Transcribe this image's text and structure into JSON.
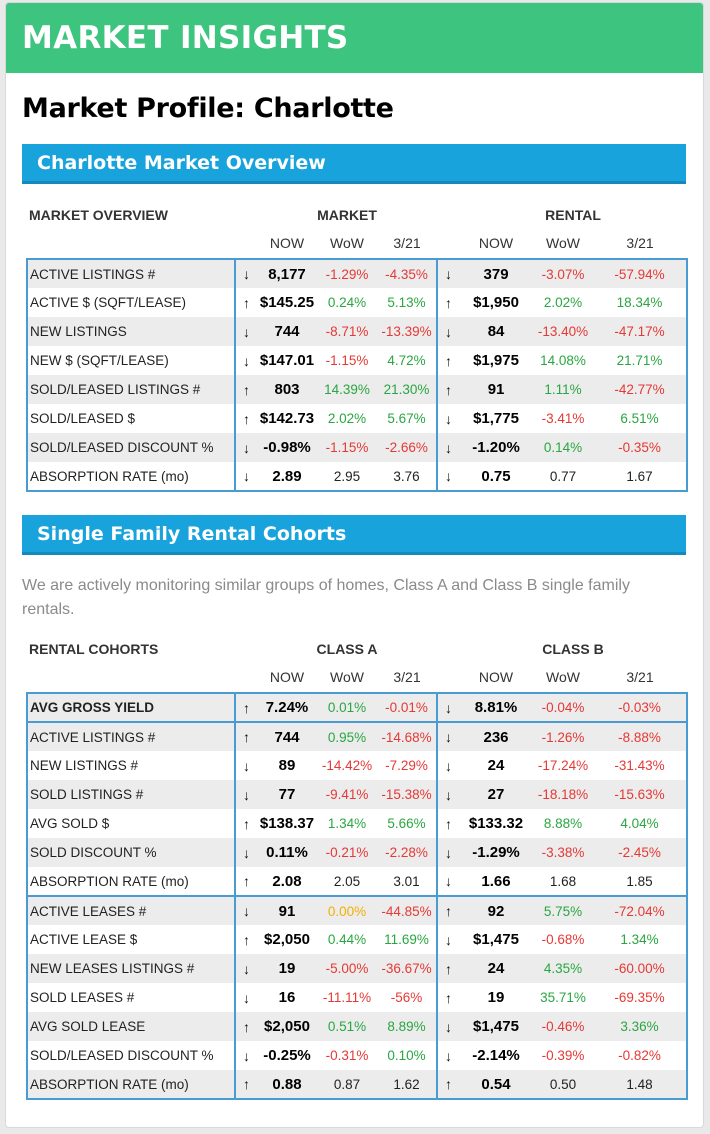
{
  "banner": {
    "title": "MARKET INSIGHTS"
  },
  "page_title": "Market Profile: Charlotte",
  "overview": {
    "header": "Charlotte Market Overview",
    "table_label": "MARKET OVERVIEW",
    "group1": "MARKET",
    "group2": "RENTAL",
    "cols": [
      "NOW",
      "WoW",
      "3/21"
    ],
    "rows": [
      {
        "label": "ACTIVE LISTINGS #",
        "a1": "↓",
        "m": [
          "8,177",
          "-1.29%",
          "-4.35%"
        ],
        "ms": [
          "now",
          "neg",
          "neg"
        ],
        "a2": "↓",
        "r": [
          "379",
          "-3.07%",
          "-57.94%"
        ],
        "rs": [
          "now",
          "neg",
          "neg"
        ]
      },
      {
        "label": "ACTIVE $ (SQFT/LEASE)",
        "a1": "↑",
        "m": [
          "$145.25",
          "0.24%",
          "5.13%"
        ],
        "ms": [
          "now",
          "pos",
          "pos"
        ],
        "a2": "↑",
        "r": [
          "$1,950",
          "2.02%",
          "18.34%"
        ],
        "rs": [
          "now",
          "pos",
          "pos"
        ]
      },
      {
        "label": "NEW LISTINGS",
        "a1": "↓",
        "m": [
          "744",
          "-8.71%",
          "-13.39%"
        ],
        "ms": [
          "now",
          "neg",
          "neg"
        ],
        "a2": "↓",
        "r": [
          "84",
          "-13.40%",
          "-47.17%"
        ],
        "rs": [
          "now",
          "neg",
          "neg"
        ]
      },
      {
        "label": "NEW $ (SQFT/LEASE)",
        "a1": "↓",
        "m": [
          "$147.01",
          "-1.15%",
          "4.72%"
        ],
        "ms": [
          "now",
          "neg",
          "pos"
        ],
        "a2": "↑",
        "r": [
          "$1,975",
          "14.08%",
          "21.71%"
        ],
        "rs": [
          "now",
          "pos",
          "pos"
        ]
      },
      {
        "label": "SOLD/LEASED LISTINGS #",
        "a1": "↑",
        "m": [
          "803",
          "14.39%",
          "21.30%"
        ],
        "ms": [
          "now",
          "pos",
          "pos"
        ],
        "a2": "↑",
        "r": [
          "91",
          "1.11%",
          "-42.77%"
        ],
        "rs": [
          "now",
          "pos",
          "neg"
        ]
      },
      {
        "label": "SOLD/LEASED $",
        "a1": "↑",
        "m": [
          "$142.73",
          "2.02%",
          "5.67%"
        ],
        "ms": [
          "now",
          "pos",
          "pos"
        ],
        "a2": "↓",
        "r": [
          "$1,775",
          "-3.41%",
          "6.51%"
        ],
        "rs": [
          "now",
          "neg",
          "pos"
        ]
      },
      {
        "label": "SOLD/LEASED DISCOUNT %",
        "a1": "↓",
        "m": [
          "-0.98%",
          "-1.15%",
          "-2.66%"
        ],
        "ms": [
          "now",
          "neg",
          "neg"
        ],
        "a2": "↓",
        "r": [
          "-1.20%",
          "0.14%",
          "-0.35%"
        ],
        "rs": [
          "now",
          "pos",
          "neg"
        ]
      },
      {
        "label": "ABSORPTION RATE (mo)",
        "a1": "↓",
        "m": [
          "2.89",
          "2.95",
          "3.76"
        ],
        "ms": [
          "now",
          "neu",
          "neu"
        ],
        "a2": "↓",
        "r": [
          "0.75",
          "0.77",
          "1.67"
        ],
        "rs": [
          "now",
          "neu",
          "neu"
        ]
      }
    ]
  },
  "cohorts": {
    "header": "Single Family Rental Cohorts",
    "description": "We are actively monitoring similar groups of homes, Class A and Class B single family rentals.",
    "table_label": "RENTAL COHORTS",
    "group1": "CLASS A",
    "group2": "CLASS B",
    "cols": [
      "NOW",
      "WoW",
      "3/21"
    ],
    "groups": [
      [
        {
          "label": "AVG GROSS YIELD",
          "hl": true,
          "a1": "↑",
          "m": [
            "7.24%",
            "0.01%",
            "-0.01%"
          ],
          "ms": [
            "now",
            "pos",
            "neg"
          ],
          "a2": "↓",
          "r": [
            "8.81%",
            "-0.04%",
            "-0.03%"
          ],
          "rs": [
            "now",
            "neg",
            "neg"
          ]
        }
      ],
      [
        {
          "label": "ACTIVE LISTINGS #",
          "a1": "↑",
          "m": [
            "744",
            "0.95%",
            "-14.68%"
          ],
          "ms": [
            "now",
            "pos",
            "neg"
          ],
          "a2": "↓",
          "r": [
            "236",
            "-1.26%",
            "-8.88%"
          ],
          "rs": [
            "now",
            "neg",
            "neg"
          ]
        },
        {
          "label": "NEW LISTINGS #",
          "a1": "↓",
          "m": [
            "89",
            "-14.42%",
            "-7.29%"
          ],
          "ms": [
            "now",
            "neg",
            "neg"
          ],
          "a2": "↓",
          "r": [
            "24",
            "-17.24%",
            "-31.43%"
          ],
          "rs": [
            "now",
            "neg",
            "neg"
          ]
        },
        {
          "label": "SOLD LISTINGS #",
          "a1": "↓",
          "m": [
            "77",
            "-9.41%",
            "-15.38%"
          ],
          "ms": [
            "now",
            "neg",
            "neg"
          ],
          "a2": "↓",
          "r": [
            "27",
            "-18.18%",
            "-15.63%"
          ],
          "rs": [
            "now",
            "neg",
            "neg"
          ]
        },
        {
          "label": "AVG SOLD $",
          "a1": "↑",
          "m": [
            "$138.37",
            "1.34%",
            "5.66%"
          ],
          "ms": [
            "now",
            "pos",
            "pos"
          ],
          "a2": "↑",
          "r": [
            "$133.32",
            "8.88%",
            "4.04%"
          ],
          "rs": [
            "now",
            "pos",
            "pos"
          ]
        },
        {
          "label": "SOLD DISCOUNT %",
          "a1": "↓",
          "m": [
            "0.11%",
            "-0.21%",
            "-2.28%"
          ],
          "ms": [
            "now",
            "neg",
            "neg"
          ],
          "a2": "↓",
          "r": [
            "-1.29%",
            "-3.38%",
            "-2.45%"
          ],
          "rs": [
            "now",
            "neg",
            "neg"
          ]
        },
        {
          "label": "ABSORPTION RATE (mo)",
          "a1": "↑",
          "m": [
            "2.08",
            "2.05",
            "3.01"
          ],
          "ms": [
            "now",
            "neu",
            "neu"
          ],
          "a2": "↓",
          "r": [
            "1.66",
            "1.68",
            "1.85"
          ],
          "rs": [
            "now",
            "neu",
            "neu"
          ]
        }
      ],
      [
        {
          "label": "ACTIVE LEASES #",
          "a1": "↓",
          "m": [
            "91",
            "0.00%",
            "-44.85%"
          ],
          "ms": [
            "now",
            "zer",
            "neg"
          ],
          "a2": "↑",
          "r": [
            "92",
            "5.75%",
            "-72.04%"
          ],
          "rs": [
            "now",
            "pos",
            "neg"
          ]
        },
        {
          "label": "ACTIVE LEASE $",
          "a1": "↑",
          "m": [
            "$2,050",
            "0.44%",
            "11.69%"
          ],
          "ms": [
            "now",
            "pos",
            "pos"
          ],
          "a2": "↓",
          "r": [
            "$1,475",
            "-0.68%",
            "1.34%"
          ],
          "rs": [
            "now",
            "neg",
            "pos"
          ]
        },
        {
          "label": "NEW LEASES LISTINGS #",
          "a1": "↓",
          "m": [
            "19",
            "-5.00%",
            "-36.67%"
          ],
          "ms": [
            "now",
            "neg",
            "neg"
          ],
          "a2": "↑",
          "r": [
            "24",
            "4.35%",
            "-60.00%"
          ],
          "rs": [
            "now",
            "pos",
            "neg"
          ]
        },
        {
          "label": "SOLD LEASES #",
          "a1": "↓",
          "m": [
            "16",
            "-11.11%",
            "-56%"
          ],
          "ms": [
            "now",
            "neg",
            "neg"
          ],
          "a2": "↑",
          "r": [
            "19",
            "35.71%",
            "-69.35%"
          ],
          "rs": [
            "now",
            "pos",
            "neg"
          ]
        },
        {
          "label": "AVG SOLD LEASE",
          "a1": "↑",
          "m": [
            "$2,050",
            "0.51%",
            "8.89%"
          ],
          "ms": [
            "now",
            "pos",
            "pos"
          ],
          "a2": "↓",
          "r": [
            "$1,475",
            "-0.46%",
            "3.36%"
          ],
          "rs": [
            "now",
            "neg",
            "pos"
          ]
        },
        {
          "label": "SOLD/LEASED DISCOUNT %",
          "a1": "↓",
          "m": [
            "-0.25%",
            "-0.31%",
            "0.10%"
          ],
          "ms": [
            "now",
            "neg",
            "pos"
          ],
          "a2": "↓",
          "r": [
            "-2.14%",
            "-0.39%",
            "-0.82%"
          ],
          "rs": [
            "now",
            "neg",
            "neg"
          ]
        },
        {
          "label": "ABSORPTION RATE (mo)",
          "a1": "↑",
          "m": [
            "0.88",
            "0.87",
            "1.62"
          ],
          "ms": [
            "now",
            "neu",
            "neu"
          ],
          "a2": "↑",
          "r": [
            "0.54",
            "0.50",
            "1.48"
          ],
          "rs": [
            "now",
            "neu",
            "neu"
          ]
        }
      ]
    ]
  },
  "colors": {
    "banner": "#3dc47e",
    "section": "#19a3dd",
    "border": "#4a9bd4",
    "negative": "#e53935",
    "positive": "#2aa641",
    "zero": "#f0b100"
  }
}
